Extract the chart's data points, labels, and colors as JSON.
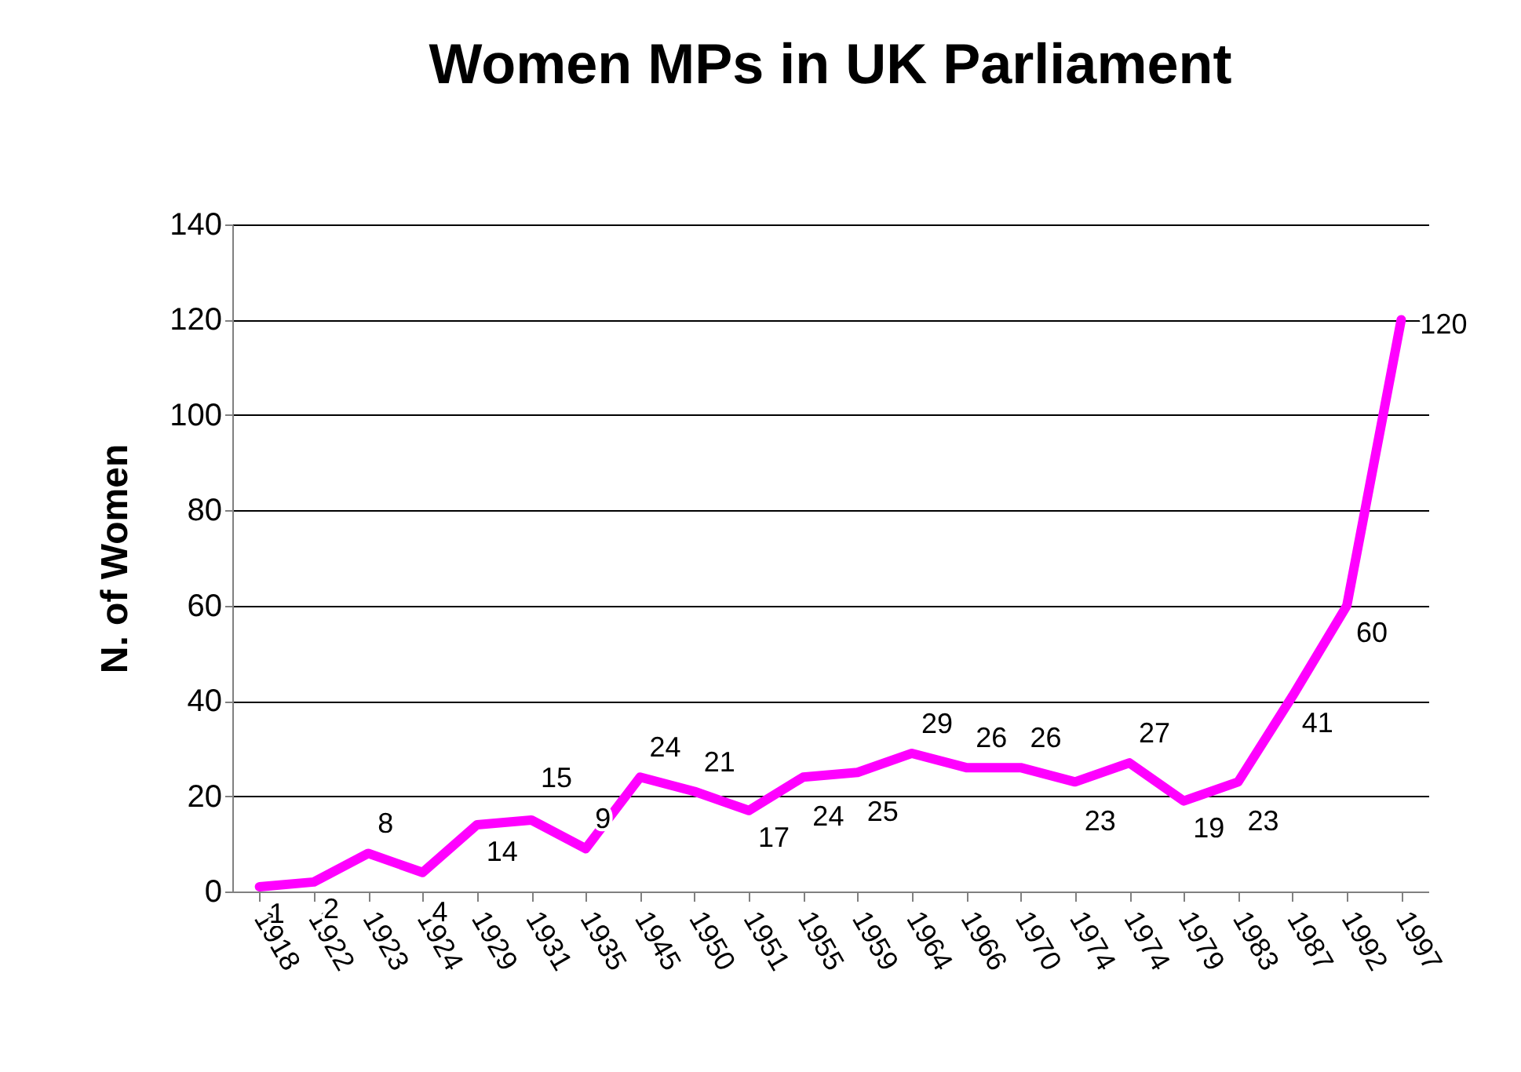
{
  "chart_data": {
    "type": "line",
    "title": "Women MPs in UK Parliament",
    "ylabel": "N. of Women",
    "categories": [
      "1918",
      "1922",
      "1923",
      "1924",
      "1929",
      "1931",
      "1935",
      "1945",
      "1950",
      "1951",
      "1955",
      "1959",
      "1964",
      "1966",
      "1970",
      "1974",
      "1974",
      "1979",
      "1983",
      "1987",
      "1992",
      "1997"
    ],
    "series": [
      {
        "color": "#ff00ff",
        "values": [
          1,
          2,
          8,
          4,
          14,
          15,
          9,
          24,
          21,
          17,
          24,
          25,
          29,
          26,
          26,
          23,
          27,
          19,
          23,
          41,
          60,
          120
        ]
      }
    ],
    "ylim": [
      0,
      140
    ],
    "yticks": [
      0,
      20,
      40,
      60,
      80,
      100,
      120,
      140
    ],
    "grid": "y",
    "data_labels": true,
    "marker": "none",
    "line_style": "solid"
  }
}
